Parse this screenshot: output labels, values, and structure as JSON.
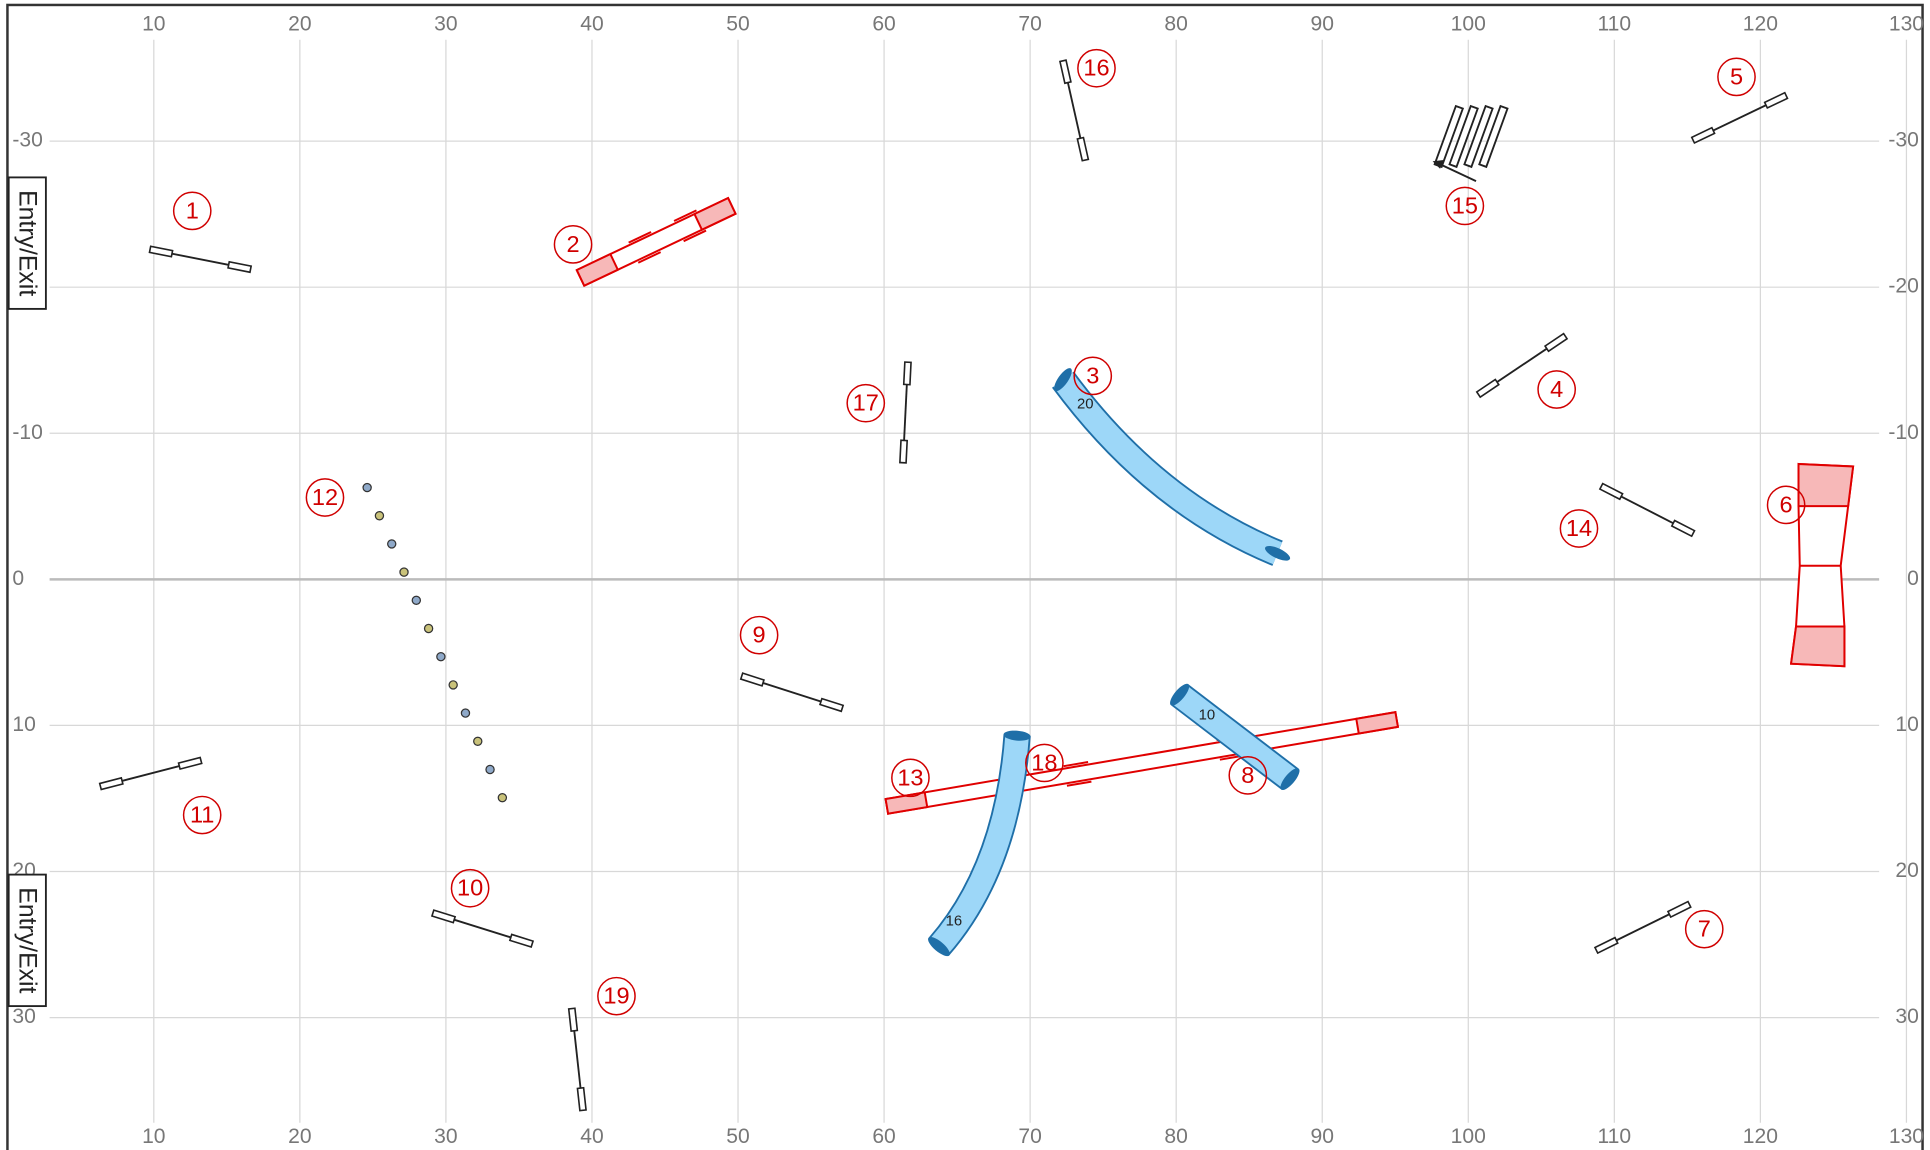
{
  "grid": {
    "xticks": [
      10,
      20,
      30,
      40,
      50,
      60,
      70,
      80,
      90,
      100,
      110,
      120,
      130
    ],
    "yticks": [
      -30,
      -20,
      -10,
      0,
      10,
      20,
      30
    ]
  },
  "entry_exit": [
    "Entry/Exit",
    "Entry/Exit"
  ],
  "obstacle_numbers": [
    "1",
    "2",
    "3",
    "4",
    "5",
    "6",
    "7",
    "8",
    "9",
    "10",
    "11",
    "12",
    "13",
    "14",
    "15",
    "16",
    "17",
    "18",
    "19"
  ],
  "tunnel_labels": [
    "20",
    "10",
    "16"
  ]
}
